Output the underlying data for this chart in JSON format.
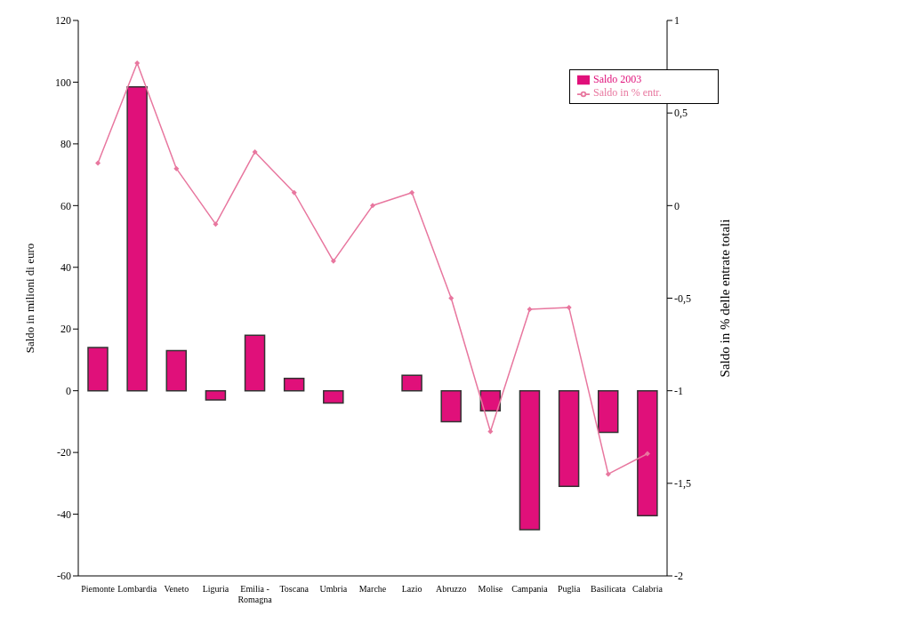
{
  "chart_data": {
    "type": "bar",
    "categories": [
      "Piemonte",
      "Lombardia",
      "Veneto",
      "Liguria",
      "Emilia - Romagna",
      "Toscana",
      "Umbria",
      "Marche",
      "Lazio",
      "Abruzzo",
      "Molise",
      "Campania",
      "Puglia",
      "Basilicata",
      "Calabria"
    ],
    "series": [
      {
        "name": "Saldo 2003",
        "color": "#e0107a",
        "values": [
          14,
          98.5,
          13,
          -3,
          18,
          4,
          -4,
          0,
          5,
          -10,
          -6.5,
          -45,
          -31,
          -13.5,
          -40.5
        ]
      },
      {
        "name": "Saldo in % entr.",
        "type": "line",
        "axis": "y2",
        "color": "#e8779f",
        "values": [
          0.23,
          0.77,
          0.2,
          -0.1,
          0.29,
          0.07,
          -0.3,
          0,
          0.07,
          -0.5,
          -1.22,
          -0.56,
          -0.55,
          -1.45,
          -1.34
        ]
      }
    ],
    "ylabel": "Saldo in milioni di euro",
    "y2label": "Saldo in % delle entrate totali",
    "ylim": [
      -60,
      120
    ],
    "yticks": [
      -60,
      -40,
      -20,
      0,
      20,
      40,
      60,
      80,
      100,
      120
    ],
    "y2lim": [
      -2,
      1
    ],
    "y2ticks": [
      {
        "value": -2,
        "label": "-2"
      },
      {
        "value": -1.5,
        "label": "-1,5"
      },
      {
        "value": -1,
        "label": "-1"
      },
      {
        "value": -0.5,
        "label": "-0,5"
      },
      {
        "value": 0,
        "label": "0"
      },
      {
        "value": 0.5,
        "label": "0,5"
      },
      {
        "value": 1,
        "label": "1"
      }
    ],
    "legend": "top right",
    "marker": "diamond",
    "grid": false
  }
}
